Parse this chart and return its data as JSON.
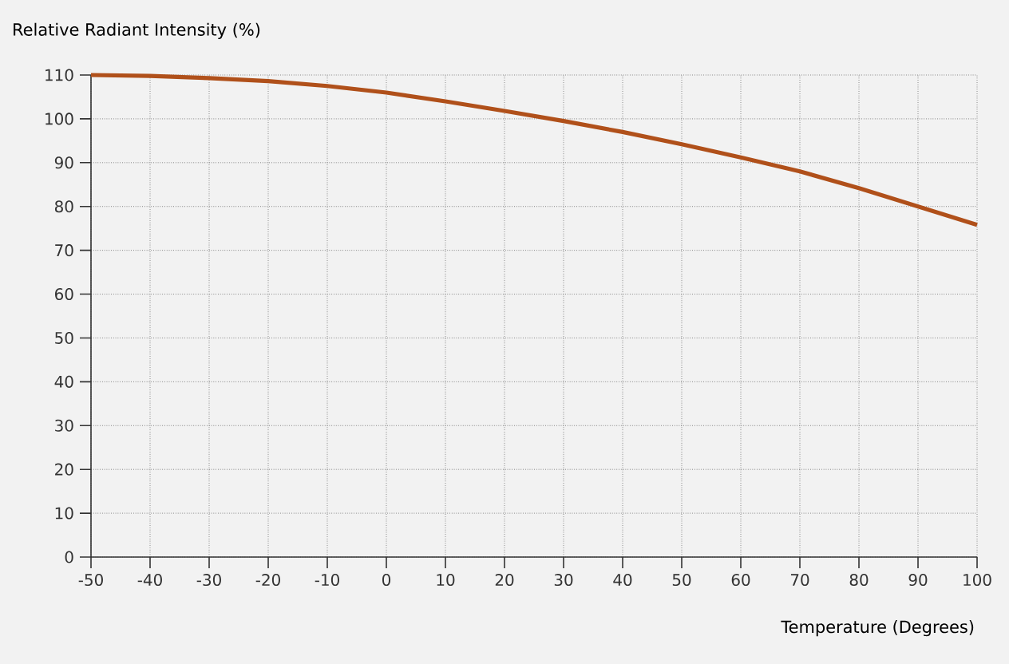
{
  "chart_data": {
    "type": "line",
    "xlabel": "Temperature (Degrees)",
    "ylabel": "Relative Radiant Intensity (%)",
    "x": [
      -50,
      -40,
      -30,
      -20,
      -10,
      0,
      10,
      20,
      30,
      40,
      50,
      60,
      70,
      80,
      90,
      100
    ],
    "series": [
      {
        "color": "#b0501a",
        "values": [
          110,
          109.8,
          109.3,
          108.6,
          107.5,
          106,
          104,
          101.8,
          99.5,
          97,
          94.2,
          91.2,
          88,
          84.2,
          80,
          75.8
        ]
      }
    ],
    "xlim": [
      -50,
      100
    ],
    "ylim": [
      0,
      110
    ],
    "xticks": [
      -50,
      -40,
      -30,
      -20,
      -10,
      0,
      10,
      20,
      30,
      40,
      50,
      60,
      70,
      80,
      90,
      100
    ],
    "yticks": [
      0,
      10,
      20,
      30,
      40,
      50,
      60,
      70,
      80,
      90,
      100,
      110
    ],
    "grid": true,
    "marker": "none",
    "line_style": "solid"
  }
}
